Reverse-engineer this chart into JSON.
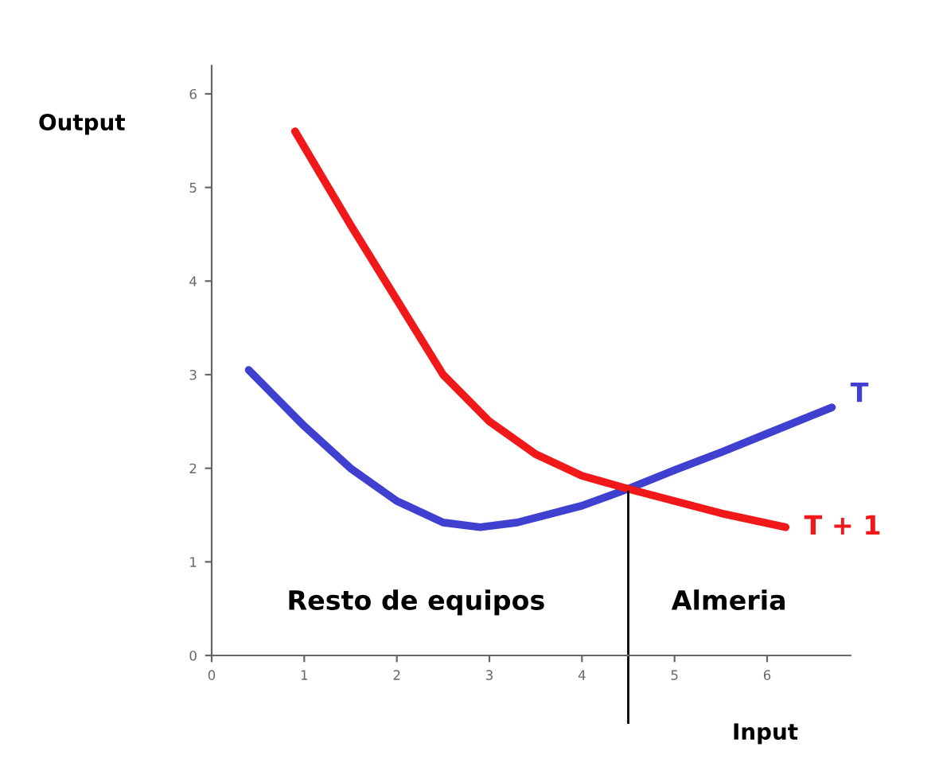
{
  "chart_data": {
    "type": "line",
    "xlabel": "Input",
    "ylabel": "Output",
    "xlim": [
      0,
      6.9
    ],
    "ylim": [
      0,
      6.3
    ],
    "xticks": [
      0,
      1,
      2,
      3,
      4,
      5,
      6
    ],
    "yticks": [
      0,
      1,
      2,
      3,
      4,
      5,
      6
    ],
    "grid": false,
    "legend": false,
    "marker": "none",
    "line_style": "solid",
    "series": [
      {
        "name": "T",
        "color": "#3f3fd0",
        "x": [
          0.4,
          1,
          1.5,
          2,
          2.5,
          2.9,
          3.3,
          4,
          4.5,
          5,
          5.5,
          6,
          6.7
        ],
        "values": [
          3.05,
          2.45,
          2.0,
          1.65,
          1.42,
          1.37,
          1.42,
          1.6,
          1.78,
          1.98,
          2.17,
          2.37,
          2.65
        ]
      },
      {
        "name": "T + 1",
        "color": "#f01818",
        "x": [
          0.9,
          1.5,
          2,
          2.5,
          3,
          3.5,
          4,
          4.5,
          5,
          5.5,
          6.2
        ],
        "values": [
          5.6,
          4.6,
          3.8,
          3.0,
          2.5,
          2.15,
          1.92,
          1.78,
          1.65,
          1.52,
          1.37
        ]
      }
    ],
    "ref_lines": [
      {
        "axis": "x",
        "value": 4.5,
        "color": "#000000"
      }
    ],
    "annotations": [
      "Resto de equipos",
      "Almeria"
    ]
  }
}
